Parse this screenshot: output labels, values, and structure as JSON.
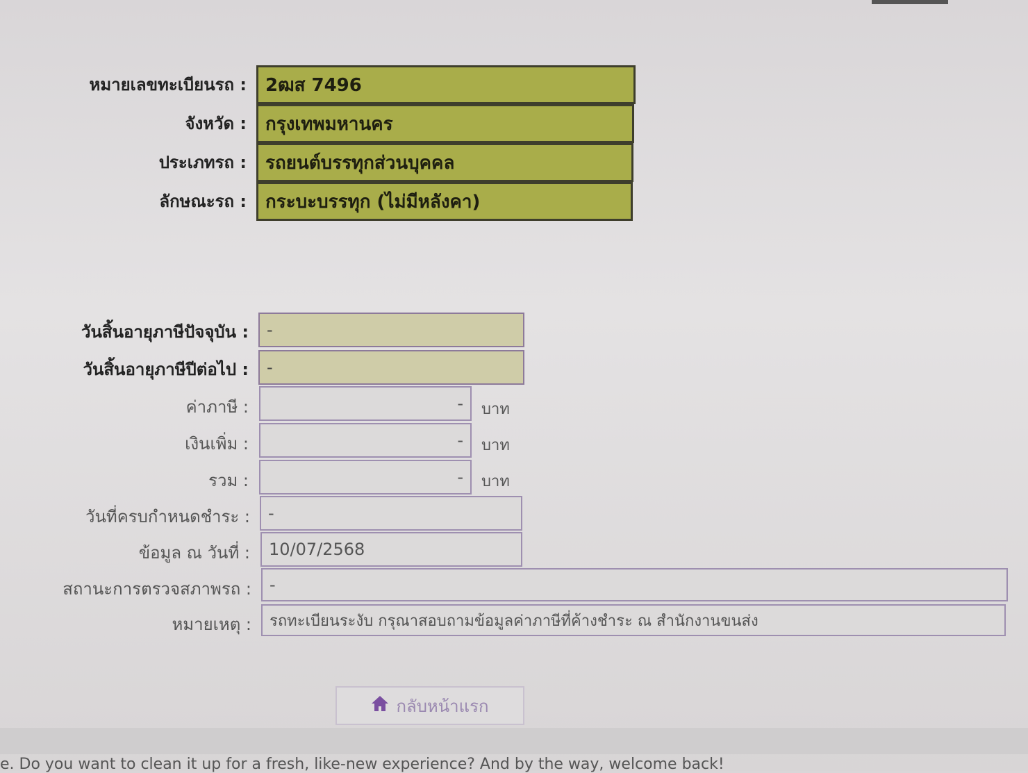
{
  "vehicle": {
    "plate": {
      "label": "หมายเลขทะเบียนรถ :",
      "value": "2ฒส 7496"
    },
    "province": {
      "label": "จังหวัด :",
      "value": "กรุงเทพมหานคร"
    },
    "type": {
      "label": "ประเภทรถ :",
      "value": "รถยนต์บรรทุกส่วนบุคคล"
    },
    "body": {
      "label": "ลักษณะรถ :",
      "value": "กระบะบรรทุก (ไม่มีหลังคา)"
    }
  },
  "tax": {
    "current_expiry": {
      "label": "วันสิ้นอายุภาษีปัจจุบัน :",
      "value": "-"
    },
    "next_expiry": {
      "label": "วันสิ้นอายุภาษีปีต่อไป :",
      "value": "-"
    },
    "tax_amount": {
      "label": "ค่าภาษี :",
      "value": "-",
      "unit": "บาท"
    },
    "surcharge": {
      "label": "เงินเพิ่ม :",
      "value": "-",
      "unit": "บาท"
    },
    "total": {
      "label": "รวม :",
      "value": "-",
      "unit": "บาท"
    },
    "due_date": {
      "label": "วันที่ครบกำหนดชำระ :",
      "value": "-"
    },
    "data_date": {
      "label": "ข้อมูล ณ วันที่ :",
      "value": "10/07/2568"
    },
    "inspection_status": {
      "label": "สถานะการตรวจสภาพรถ :",
      "value": "-"
    },
    "remark": {
      "label": "หมายเหตุ :",
      "value": "รถทะเบียนระงับ กรุณาสอบถามข้อมูลค่าภาษีที่ค้างชำระ ณ สำนักงานขนส่ง"
    }
  },
  "home_button": {
    "label": "กลับหน้าแรก",
    "icon": "home-icon"
  },
  "footer": {
    "text": "e. Do you want to clean it up for a fresh, like-new experience? And by the way, welcome back!"
  },
  "colors": {
    "highlight": "#a9ad4a",
    "accent": "#7a4fa0"
  }
}
